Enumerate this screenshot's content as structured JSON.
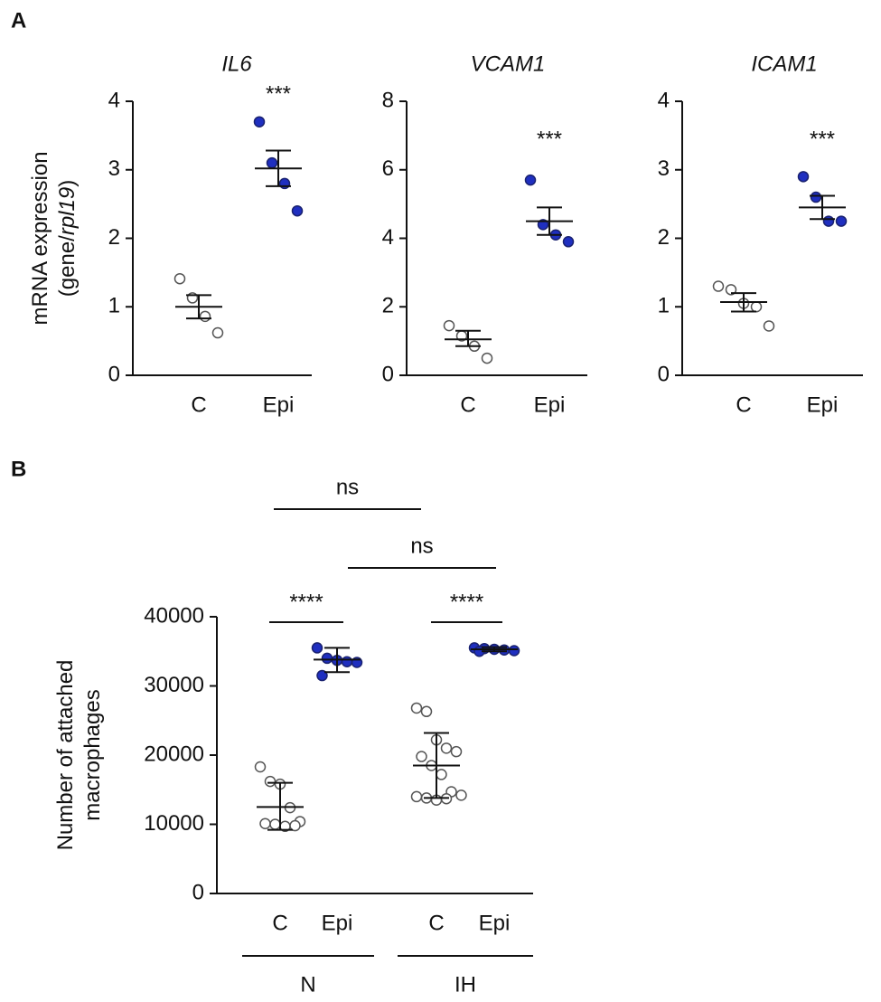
{
  "panel_labels": [
    "A",
    "B"
  ],
  "chart_data": [
    {
      "type": "scatter",
      "title": "IL6",
      "ylabel": [
        "mRNA expression",
        "(gene/",
        "rpl19",
        ")"
      ],
      "ylim": [
        0,
        4
      ],
      "yticks": [
        0,
        1,
        2,
        3,
        4
      ],
      "annotation": "***",
      "groups": [
        {
          "label": "C",
          "color": "#ffffff",
          "points": [
            1.41,
            1.13,
            0.86,
            0.62
          ],
          "mean": 1.0,
          "error": [
            0.83,
            1.17
          ]
        },
        {
          "label": "Epi",
          "color": "#1f2fc0",
          "points": [
            3.7,
            3.1,
            2.8,
            2.4
          ],
          "mean": 3.02,
          "error": [
            2.76,
            3.28
          ]
        }
      ]
    },
    {
      "type": "scatter",
      "title": "VCAM1",
      "ylim": [
        0,
        8
      ],
      "yticks": [
        0,
        2,
        4,
        6,
        8
      ],
      "annotation": "***",
      "groups": [
        {
          "label": "C",
          "color": "#ffffff",
          "points": [
            1.45,
            1.15,
            0.85,
            0.5
          ],
          "mean": 1.05,
          "error": [
            0.85,
            1.3
          ]
        },
        {
          "label": "Epi",
          "color": "#1f2fc0",
          "points": [
            5.7,
            4.4,
            4.1,
            3.9
          ],
          "mean": 4.5,
          "error": [
            4.1,
            4.9
          ]
        }
      ]
    },
    {
      "type": "scatter",
      "title": "ICAM1",
      "ylim": [
        0,
        4
      ],
      "yticks": [
        0,
        1,
        2,
        3,
        4
      ],
      "annotation": "***",
      "groups": [
        {
          "label": "C",
          "color": "#ffffff",
          "points": [
            1.3,
            1.25,
            1.05,
            1.0,
            0.72
          ],
          "mean": 1.07,
          "error": [
            0.93,
            1.2
          ]
        },
        {
          "label": "Epi",
          "color": "#1f2fc0",
          "points": [
            2.9,
            2.6,
            2.25,
            2.25
          ],
          "mean": 2.45,
          "error": [
            2.28,
            2.62
          ]
        }
      ]
    },
    {
      "type": "scatter",
      "ylabel": [
        "Number of attached",
        "macrophages"
      ],
      "ylim": [
        0,
        40000
      ],
      "yticks": [
        0,
        10000,
        20000,
        30000,
        40000
      ],
      "group_labels": [
        "N",
        "IH"
      ],
      "annotations": [
        "****",
        "****",
        "ns",
        "ns"
      ],
      "groups": [
        {
          "label": "C",
          "color": "#ffffff",
          "points": [
            18300,
            16200,
            15800,
            12400,
            10400,
            10100,
            10000,
            9700,
            9800
          ],
          "mean": 12500,
          "error": [
            9200,
            16000
          ]
        },
        {
          "label": "Epi",
          "color": "#1f2fc0",
          "points": [
            35500,
            34000,
            33700,
            33500,
            33400,
            31500
          ],
          "mean": 33800,
          "error": [
            32000,
            35500
          ]
        },
        {
          "label": "C",
          "color": "#ffffff",
          "points": [
            26800,
            26300,
            22200,
            21000,
            20500,
            19800,
            18500,
            17200,
            14700,
            14200,
            14000,
            13800,
            13500,
            13700
          ],
          "mean": 18500,
          "error": [
            13800,
            23200
          ]
        },
        {
          "label": "Epi",
          "color": "#1f2fc0",
          "points": [
            35500,
            35400,
            35300,
            35200,
            35100,
            35000
          ],
          "mean": 35300,
          "error": [
            35000,
            35600
          ]
        }
      ]
    }
  ]
}
